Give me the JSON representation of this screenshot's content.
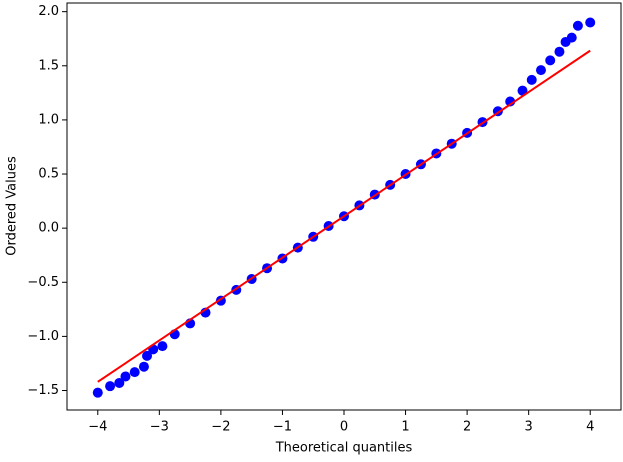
{
  "chart_data": {
    "type": "scatter",
    "x_label": "Theoretical quantiles",
    "y_label": "Ordered Values",
    "xlim": [
      -4.5,
      4.5
    ],
    "ylim": [
      -1.68,
      2.08
    ],
    "xticks": [
      {
        "value": -4,
        "label": "−4"
      },
      {
        "value": -3,
        "label": "−3"
      },
      {
        "value": -2,
        "label": "−2"
      },
      {
        "value": -1,
        "label": "−1"
      },
      0,
      1,
      2,
      3,
      4
    ],
    "yticks": [
      {
        "value": -1.5,
        "label": "−1.5"
      },
      {
        "value": -1.0,
        "label": "−1.0"
      },
      {
        "value": -0.5,
        "label": "−0.5"
      },
      {
        "value": 0,
        "label": "0.0"
      },
      0.5,
      {
        "value": 1,
        "label": "1.0"
      },
      1.5,
      {
        "value": 2,
        "label": "2.0"
      }
    ],
    "points": {
      "color": "#0000ff",
      "x": [
        -4.0,
        -3.8,
        -3.65,
        -3.55,
        -3.4,
        -3.25,
        -3.2,
        -3.1,
        -2.95,
        -2.75,
        -2.5,
        -2.25,
        -2.0,
        -1.75,
        -1.5,
        -1.25,
        -1.0,
        -0.75,
        -0.5,
        -0.25,
        0,
        0.25,
        0.5,
        0.75,
        1.0,
        1.25,
        1.5,
        1.75,
        2.0,
        2.25,
        2.5,
        2.7,
        2.9,
        3.05,
        3.2,
        3.35,
        3.5,
        3.6,
        3.7,
        3.8,
        4.0
      ],
      "y": [
        -1.52,
        -1.46,
        -1.43,
        -1.37,
        -1.33,
        -1.28,
        -1.18,
        -1.12,
        -1.09,
        -0.98,
        -0.88,
        -0.78,
        -0.67,
        -0.57,
        -0.47,
        -0.37,
        -0.28,
        -0.18,
        -0.08,
        0.02,
        0.11,
        0.21,
        0.31,
        0.4,
        0.5,
        0.59,
        0.69,
        0.78,
        0.88,
        0.98,
        1.08,
        1.17,
        1.27,
        1.37,
        1.46,
        1.55,
        1.63,
        1.72,
        1.76,
        1.87,
        1.9
      ]
    },
    "fit_line": {
      "color": "#ff0000",
      "x": [
        -4,
        4
      ],
      "y": [
        -1.42,
        1.64
      ]
    }
  }
}
